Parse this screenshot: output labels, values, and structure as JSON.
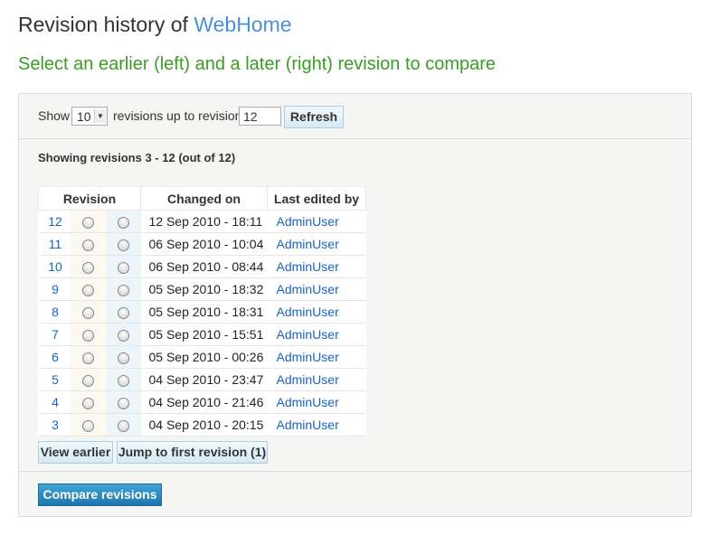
{
  "header": {
    "title_prefix": "Revision history of ",
    "page_name": "WebHome",
    "subtitle": "Select an earlier (left) and a later (right) revision to compare"
  },
  "controls": {
    "show_label": "Show",
    "count_value": "10",
    "mid_label": "revisions up to revision",
    "revision_value": "12",
    "refresh_label": "Refresh"
  },
  "showing_text": "Showing revisions 3 - 12 (out of 12)",
  "table": {
    "headers": [
      "Revision",
      "Changed on",
      "Last edited by"
    ],
    "rows": [
      {
        "rev": "12",
        "date": "12 Sep 2010 - 18:11",
        "user": "AdminUser"
      },
      {
        "rev": "11",
        "date": "06 Sep 2010 - 10:04",
        "user": "AdminUser"
      },
      {
        "rev": "10",
        "date": "06 Sep 2010 - 08:44",
        "user": "AdminUser"
      },
      {
        "rev": "9",
        "date": "05 Sep 2010 - 18:32",
        "user": "AdminUser"
      },
      {
        "rev": "8",
        "date": "05 Sep 2010 - 18:31",
        "user": "AdminUser"
      },
      {
        "rev": "7",
        "date": "05 Sep 2010 - 15:51",
        "user": "AdminUser"
      },
      {
        "rev": "6",
        "date": "05 Sep 2010 - 00:26",
        "user": "AdminUser"
      },
      {
        "rev": "5",
        "date": "04 Sep 2010 - 23:47",
        "user": "AdminUser"
      },
      {
        "rev": "4",
        "date": "04 Sep 2010 - 21:46",
        "user": "AdminUser"
      },
      {
        "rev": "3",
        "date": "04 Sep 2010 - 20:15",
        "user": "AdminUser"
      }
    ]
  },
  "buttons": {
    "view_earlier": "View earlier",
    "jump_first": "Jump to first revision (1)",
    "compare": "Compare revisions"
  }
}
